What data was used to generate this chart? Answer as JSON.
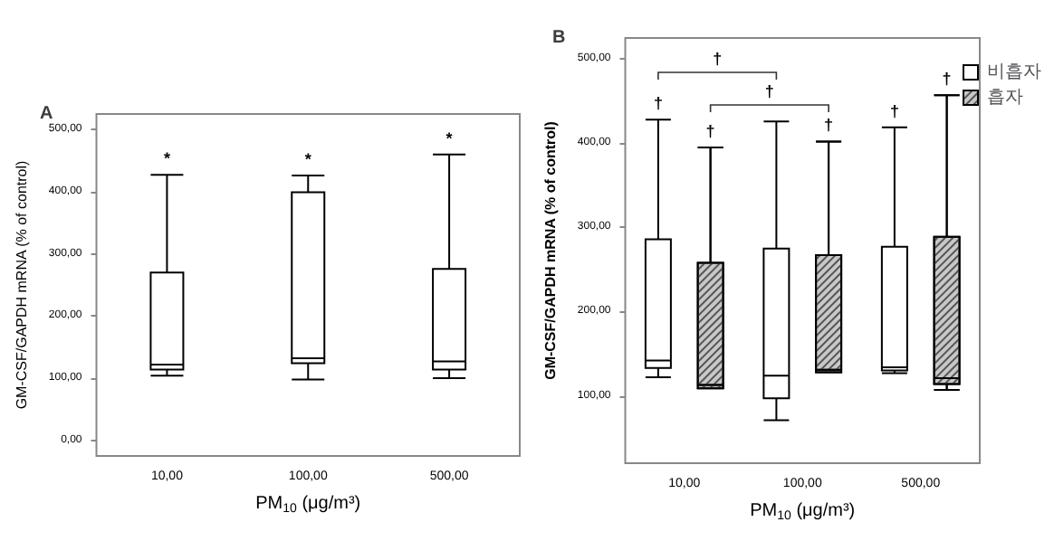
{
  "chart_data": [
    {
      "type": "box",
      "title": "A",
      "xlabel": "PM$_{10}$ (μg/m³)",
      "ylabel": "GM-CSF/GAPDH mRNA (% of control)",
      "categories": [
        "10,00",
        "100,00",
        "500,00"
      ],
      "series": [
        {
          "color": "#ffffff",
          "boxes": [
            {
              "low": 104,
              "q1": 114,
              "median": 122,
              "q3": 270,
              "high": 427
            },
            {
              "low": 98,
              "q1": 124,
              "median": 132,
              "q3": 399,
              "high": 426
            },
            {
              "low": 100,
              "q1": 114,
              "median": 127,
              "q3": 276,
              "high": 460
            }
          ]
        }
      ],
      "ylim": [
        -25,
        525
      ],
      "yticks": [
        {
          "value": 0,
          "label": "0,00"
        },
        {
          "value": 100,
          "label": "100,00"
        },
        {
          "value": 200,
          "label": "200,00"
        },
        {
          "value": 300,
          "label": "300,00"
        },
        {
          "value": 400,
          "label": "400,00"
        },
        {
          "value": 500,
          "label": "500,00"
        }
      ],
      "grid": false,
      "legend": false,
      "annotations": [
        "*",
        "*",
        "*"
      ]
    },
    {
      "type": "box",
      "title": "B",
      "xlabel": "PM$_{10}$ (μg/m³)",
      "ylabel": "GM-CSF/GAPDH mRNA (% of control)",
      "categories": [
        "10,00",
        "100,00",
        "500,00"
      ],
      "series": [
        {
          "name": "비흡자",
          "color": "#ffffff",
          "boxes": [
            {
              "low": 122,
              "q1": 133,
              "median": 142,
              "q3": 286,
              "high": 428
            },
            {
              "low": 71,
              "q1": 97,
              "median": 124,
              "q3": 275,
              "high": 426
            },
            {
              "low": 127,
              "q1": 130,
              "median": 134,
              "q3": 277,
              "high": 419
            }
          ]
        },
        {
          "name": "흡자",
          "color": "#c8c8c8",
          "boxes": [
            {
              "low": 109,
              "q1": 109,
              "median": 113,
              "q3": 258,
              "high": 395
            },
            {
              "low": 128,
              "q1": 128,
              "median": 131,
              "q3": 267,
              "high": 402
            },
            {
              "low": 107,
              "q1": 114,
              "median": 121,
              "q3": 289,
              "high": 457
            }
          ]
        }
      ],
      "ylim": [
        20,
        525
      ],
      "yticks": [
        {
          "value": 100,
          "label": "100,00"
        },
        {
          "value": 200,
          "label": "200,00"
        },
        {
          "value": 300,
          "label": "300,00"
        },
        {
          "value": 400,
          "label": "400,00"
        },
        {
          "value": 500,
          "label": "500,00"
        }
      ],
      "grid": false,
      "legend": "top right",
      "annotations": [
        "†",
        "†",
        "†",
        "†",
        "†",
        "†",
        "†"
      ]
    }
  ]
}
